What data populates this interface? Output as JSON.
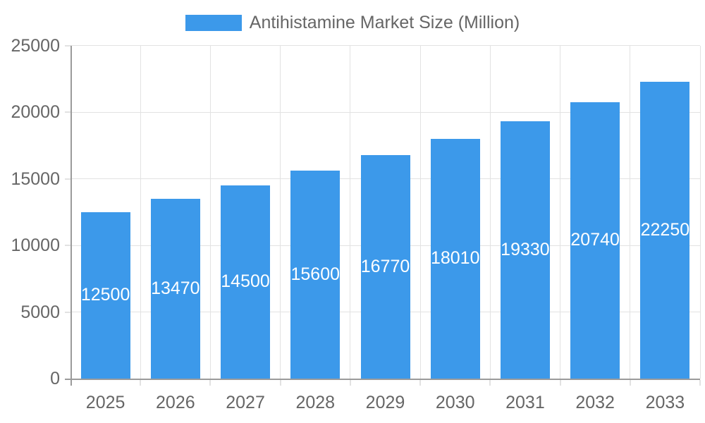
{
  "chart_data": {
    "type": "bar",
    "title": "",
    "legend_label": "Antihistamine Market Size (Million)",
    "legend_position": "top-center",
    "categories": [
      "2025",
      "2026",
      "2027",
      "2028",
      "2029",
      "2030",
      "2031",
      "2032",
      "2033"
    ],
    "series": [
      {
        "name": "Antihistamine Market Size (Million)",
        "values": [
          12500,
          13470,
          14500,
          15600,
          16770,
          18010,
          19330,
          20740,
          22250
        ]
      }
    ],
    "values": [
      12500,
      13470,
      14500,
      15600,
      16770,
      18010,
      19330,
      20740,
      22250
    ],
    "bar_value_labels": [
      "12500",
      "13470",
      "14500",
      "15600",
      "16770",
      "18010",
      "19330",
      "20740",
      "22250"
    ],
    "xlabel": "",
    "ylabel": "",
    "ylim": [
      0,
      25000
    ],
    "y_ticks": [
      0,
      5000,
      10000,
      15000,
      20000,
      25000
    ],
    "y_tick_labels": [
      "0",
      "5000",
      "10000",
      "15000",
      "20000",
      "25000"
    ],
    "grid": true,
    "value_labels_inside_bars": true,
    "colors": {
      "bar": "#3C99EA",
      "bar_label": "#FFFFFF",
      "axis_text": "#666666",
      "grid_line": "#E2E2E2",
      "axis_line": "#9B9B9B",
      "background": "#FFFFFF"
    }
  }
}
